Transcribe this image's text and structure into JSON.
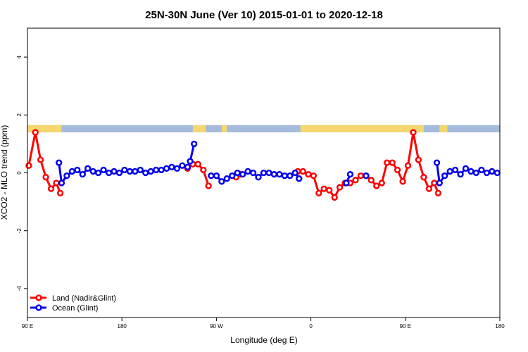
{
  "chart_data": {
    "type": "line",
    "title": "25N-30N June (Ver 10)   2015-01-01 to 2020-12-18",
    "xlabel": "Longitude (deg E)",
    "ylabel": "XCO2 - MLO trend (ppm)",
    "xlim": [
      90,
      270
    ],
    "ylim": [
      -5,
      5
    ],
    "x_ticks": [
      {
        "value": 90,
        "label": "90 E"
      },
      {
        "value": 126,
        "label": "180"
      },
      {
        "value": 162,
        "label": "90 W"
      },
      {
        "value": 198,
        "label": "0"
      },
      {
        "value": 234,
        "label": "90 E"
      },
      {
        "value": 270,
        "label": "180"
      }
    ],
    "y_ticks": [
      {
        "value": -4,
        "label": "-4"
      },
      {
        "value": -2,
        "label": "-2"
      },
      {
        "value": 0,
        "label": "0"
      },
      {
        "value": 2,
        "label": "2"
      },
      {
        "value": 4,
        "label": "4"
      }
    ],
    "grid": false,
    "legend": {
      "position": "bottom-left"
    },
    "land_band": {
      "y_range": [
        1.4,
        1.65
      ],
      "ocean_color": "#a5bbdb",
      "land_color": "#f5d66f",
      "land_spans": [
        [
          90,
          103
        ],
        [
          153,
          158
        ],
        [
          164,
          166
        ],
        [
          194,
          241
        ],
        [
          247,
          250
        ]
      ]
    },
    "series": [
      {
        "name": "Land (Nadir&Glint)",
        "color": "#ff0000",
        "segments": [
          [
            [
              90.5,
              0.25
            ],
            [
              93,
              1.4
            ],
            [
              95,
              0.45
            ],
            [
              97,
              -0.15
            ],
            [
              99,
              -0.55
            ],
            [
              101,
              -0.35
            ],
            [
              102.5,
              -0.7
            ]
          ],
          [
            [
              151,
              0.15
            ],
            [
              153,
              0.3
            ],
            [
              155,
              0.3
            ],
            [
              157,
              0.1
            ],
            [
              159,
              -0.45
            ]
          ],
          [
            [
              169.5,
              -0.15
            ],
            [
              171,
              -0.05
            ]
          ],
          [
            [
              193,
              0.05
            ],
            [
              195,
              0.05
            ],
            [
              197,
              -0.05
            ],
            [
              199,
              -0.1
            ],
            [
              201,
              -0.7
            ],
            [
              203,
              -0.55
            ],
            [
              205,
              -0.6
            ],
            [
              207,
              -0.85
            ],
            [
              209,
              -0.5
            ],
            [
              211,
              -0.35
            ],
            [
              213,
              -0.35
            ],
            [
              215,
              -0.25
            ],
            [
              217,
              -0.1
            ],
            [
              219,
              -0.1
            ],
            [
              221,
              -0.25
            ],
            [
              223,
              -0.45
            ],
            [
              225,
              -0.35
            ],
            [
              227,
              0.35
            ],
            [
              229,
              0.35
            ],
            [
              231,
              0.1
            ],
            [
              233,
              -0.3
            ],
            [
              235,
              0.25
            ],
            [
              237,
              1.4
            ],
            [
              239,
              0.45
            ],
            [
              241,
              -0.15
            ],
            [
              243,
              -0.55
            ],
            [
              245,
              -0.35
            ],
            [
              246.5,
              -0.7
            ]
          ]
        ]
      },
      {
        "name": "Ocean (Glint)",
        "color": "#0000ee",
        "segments": [
          [
            [
              102,
              0.35
            ],
            [
              103,
              -0.35
            ],
            [
              105,
              -0.1
            ],
            [
              107,
              0.05
            ],
            [
              109,
              0.1
            ],
            [
              111,
              -0.05
            ],
            [
              113,
              0.15
            ],
            [
              115,
              0.05
            ],
            [
              117,
              0.0
            ],
            [
              119,
              0.1
            ],
            [
              121,
              0.0
            ],
            [
              123,
              0.05
            ],
            [
              125,
              0.0
            ],
            [
              127,
              0.1
            ],
            [
              129,
              0.05
            ],
            [
              131,
              0.05
            ],
            [
              133,
              0.1
            ],
            [
              135,
              0.0
            ],
            [
              137,
              0.05
            ],
            [
              139,
              0.1
            ],
            [
              141,
              0.1
            ],
            [
              143,
              0.15
            ],
            [
              145,
              0.2
            ],
            [
              147,
              0.15
            ],
            [
              149,
              0.25
            ],
            [
              151,
              0.2
            ],
            [
              152,
              0.4
            ],
            [
              153.5,
              1.0
            ]
          ],
          [
            [
              160,
              -0.1
            ],
            [
              162,
              -0.1
            ],
            [
              164,
              -0.3
            ],
            [
              166,
              -0.2
            ],
            [
              168,
              -0.1
            ],
            [
              170,
              0.0
            ],
            [
              172,
              -0.05
            ],
            [
              174,
              0.05
            ],
            [
              176,
              0.0
            ],
            [
              178,
              -0.15
            ],
            [
              180,
              0.0
            ],
            [
              182,
              0.0
            ],
            [
              184,
              -0.05
            ],
            [
              186,
              -0.05
            ],
            [
              188,
              -0.1
            ],
            [
              190,
              -0.1
            ],
            [
              192,
              0.0
            ],
            [
              193.5,
              -0.2
            ]
          ],
          [
            [
              211.5,
              -0.35
            ],
            [
              213,
              -0.05
            ]
          ],
          [
            [
              219,
              -0.1
            ]
          ],
          [
            [
              246,
              0.35
            ],
            [
              247,
              -0.35
            ],
            [
              249,
              -0.1
            ],
            [
              251,
              0.05
            ],
            [
              253,
              0.1
            ],
            [
              255,
              -0.05
            ],
            [
              257,
              0.15
            ],
            [
              259,
              0.05
            ],
            [
              261,
              0.0
            ],
            [
              263,
              0.1
            ],
            [
              265,
              0.0
            ],
            [
              267,
              0.05
            ],
            [
              269,
              0.0
            ]
          ]
        ]
      }
    ]
  }
}
